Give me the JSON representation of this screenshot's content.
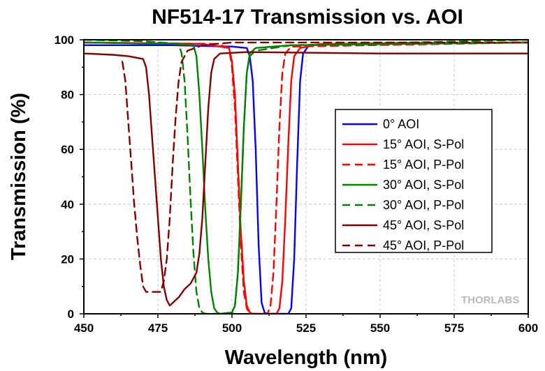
{
  "chart_data": {
    "type": "line",
    "title": "NF514-17 Transmission vs. AOI",
    "xlabel": "Wavelength (nm)",
    "ylabel": "Transmission (%)",
    "xlim": [
      450,
      600
    ],
    "ylim": [
      0,
      100
    ],
    "xticks": [
      450,
      475,
      500,
      525,
      550,
      575,
      600
    ],
    "yticks": [
      0,
      20,
      40,
      60,
      80,
      100
    ],
    "grid": true,
    "legend_position": "center-right",
    "watermark": "THORLABS",
    "series": [
      {
        "name": "0° AOI",
        "color": "#0000ff",
        "dash": "solid",
        "points": [
          [
            450,
            98
          ],
          [
            480,
            98
          ],
          [
            500,
            97.5
          ],
          [
            505,
            97
          ],
          [
            506,
            94
          ],
          [
            507,
            85
          ],
          [
            508,
            60
          ],
          [
            509,
            25
          ],
          [
            510,
            4
          ],
          [
            511,
            0.5
          ],
          [
            512,
            0
          ],
          [
            519,
            0
          ],
          [
            520,
            2
          ],
          [
            521,
            20
          ],
          [
            522,
            55
          ],
          [
            523,
            85
          ],
          [
            524,
            95
          ],
          [
            526,
            98
          ],
          [
            540,
            98.5
          ],
          [
            600,
            99
          ]
        ]
      },
      {
        "name": "15° AOI, S-Pol",
        "color": "#ff0000",
        "dash": "solid",
        "points": [
          [
            450,
            99
          ],
          [
            490,
            98.5
          ],
          [
            499,
            97
          ],
          [
            500,
            92
          ],
          [
            501,
            80
          ],
          [
            502,
            55
          ],
          [
            503,
            30
          ],
          [
            504,
            12
          ],
          [
            505,
            3
          ],
          [
            506,
            0.5
          ],
          [
            507,
            0
          ],
          [
            515,
            0
          ],
          [
            516,
            2
          ],
          [
            517,
            12
          ],
          [
            518,
            35
          ],
          [
            519,
            62
          ],
          [
            520,
            85
          ],
          [
            521,
            94
          ],
          [
            523,
            97
          ],
          [
            530,
            98.5
          ],
          [
            600,
            99
          ]
        ]
      },
      {
        "name": "15° AOI, P-Pol",
        "color": "#ff0000",
        "dash": "dash",
        "points": [
          [
            450,
            99
          ],
          [
            495,
            98.5
          ],
          [
            499,
            97
          ],
          [
            500,
            90
          ],
          [
            501,
            75
          ],
          [
            502,
            50
          ],
          [
            503,
            25
          ],
          [
            504,
            8
          ],
          [
            505,
            2
          ],
          [
            506,
            0
          ],
          [
            512,
            0
          ],
          [
            513,
            3
          ],
          [
            514,
            15
          ],
          [
            515,
            40
          ],
          [
            516,
            68
          ],
          [
            517,
            88
          ],
          [
            518,
            95
          ],
          [
            520,
            97.5
          ],
          [
            600,
            99
          ]
        ]
      },
      {
        "name": "30° AOI, S-Pol",
        "color": "#008000",
        "dash": "solid",
        "points": [
          [
            450,
            99
          ],
          [
            480,
            98.5
          ],
          [
            487,
            98
          ],
          [
            488,
            94
          ],
          [
            489,
            80
          ],
          [
            490,
            60
          ],
          [
            491,
            38
          ],
          [
            492,
            20
          ],
          [
            493,
            8
          ],
          [
            494,
            2
          ],
          [
            495,
            0.5
          ],
          [
            496,
            0
          ],
          [
            500,
            0.5
          ],
          [
            501,
            3
          ],
          [
            502,
            15
          ],
          [
            503,
            40
          ],
          [
            504,
            68
          ],
          [
            505,
            88
          ],
          [
            506,
            95
          ],
          [
            508,
            97
          ],
          [
            520,
            98
          ],
          [
            600,
            99
          ]
        ]
      },
      {
        "name": "30° AOI, P-Pol",
        "color": "#008000",
        "dash": "dash",
        "points": [
          [
            450,
            100
          ],
          [
            470,
            99.5
          ],
          [
            482,
            98.5
          ],
          [
            483,
            95
          ],
          [
            484,
            85
          ],
          [
            485,
            65
          ],
          [
            486,
            42
          ],
          [
            487,
            22
          ],
          [
            488,
            8
          ],
          [
            489,
            2
          ],
          [
            490,
            0.5
          ],
          [
            491,
            0
          ],
          [
            500,
            0
          ],
          [
            501,
            3
          ],
          [
            502,
            15
          ],
          [
            503,
            40
          ],
          [
            504,
            68
          ],
          [
            505,
            88
          ],
          [
            506,
            94
          ],
          [
            508,
            96
          ],
          [
            520,
            98
          ],
          [
            600,
            100
          ]
        ]
      },
      {
        "name": "45° AOI, S-Pol",
        "color": "#800000",
        "dash": "solid",
        "points": [
          [
            450,
            95
          ],
          [
            460,
            94.5
          ],
          [
            465,
            94
          ],
          [
            470,
            93
          ],
          [
            471,
            90
          ],
          [
            472,
            80
          ],
          [
            473,
            65
          ],
          [
            474,
            50
          ],
          [
            475,
            35
          ],
          [
            476,
            20
          ],
          [
            477,
            10
          ],
          [
            478,
            5
          ],
          [
            479,
            3
          ],
          [
            480,
            4
          ],
          [
            482,
            6
          ],
          [
            484,
            9
          ],
          [
            486,
            11
          ],
          [
            488,
            15
          ],
          [
            489,
            22
          ],
          [
            490,
            35
          ],
          [
            491,
            55
          ],
          [
            492,
            75
          ],
          [
            493,
            88
          ],
          [
            494,
            93
          ],
          [
            496,
            95
          ],
          [
            505,
            95.5
          ],
          [
            550,
            95
          ],
          [
            600,
            95
          ]
        ]
      },
      {
        "name": "45° AOI, P-Pol",
        "color": "#800000",
        "dash": "dash",
        "points": [
          [
            463,
            92
          ],
          [
            464,
            85
          ],
          [
            465,
            70
          ],
          [
            466,
            55
          ],
          [
            467,
            40
          ],
          [
            468,
            28
          ],
          [
            469,
            18
          ],
          [
            470,
            10
          ],
          [
            471,
            8
          ],
          [
            476,
            8
          ],
          [
            477,
            12
          ],
          [
            478,
            20
          ],
          [
            479,
            35
          ],
          [
            480,
            55
          ],
          [
            481,
            72
          ],
          [
            482,
            85
          ],
          [
            483,
            92
          ],
          [
            485,
            96
          ],
          [
            490,
            98
          ],
          [
            500,
            99
          ],
          [
            600,
            99
          ]
        ]
      }
    ]
  }
}
